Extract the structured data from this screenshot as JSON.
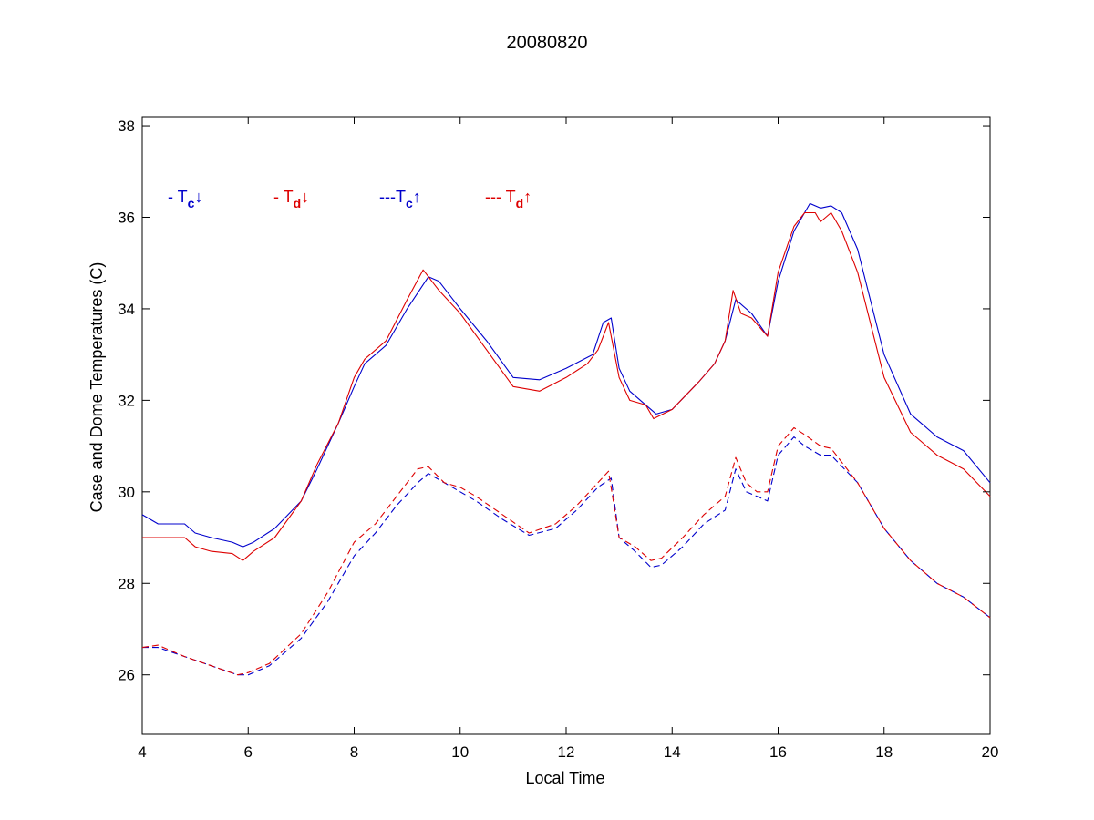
{
  "chart_data": {
    "type": "line",
    "title": "20080820",
    "xlabel": "Local Time",
    "ylabel": "Case and Dome Temperatures (C)",
    "xlim": [
      4,
      20
    ],
    "ylim": [
      24.7,
      38.2
    ],
    "xticks": [
      4,
      6,
      8,
      10,
      12,
      14,
      16,
      18,
      20
    ],
    "yticks": [
      26,
      28,
      30,
      32,
      34,
      36,
      38
    ],
    "grid": false,
    "legend_placement": "top-left",
    "legend": [
      {
        "prefix": "- T",
        "sub": "c",
        "arrow": "↓",
        "color": "#0000cc"
      },
      {
        "prefix": "- T",
        "sub": "d",
        "arrow": "↓",
        "color": "#dd0000"
      },
      {
        "prefix": "---T",
        "sub": "c",
        "arrow": "↑",
        "color": "#0000cc"
      },
      {
        "prefix": "--- T",
        "sub": "d",
        "arrow": "↑",
        "color": "#dd0000"
      }
    ],
    "series": [
      {
        "key": "tc_down",
        "color": "#0000cc",
        "dash": "solid",
        "x": [
          4.0,
          4.3,
          4.8,
          5.0,
          5.3,
          5.7,
          5.9,
          6.1,
          6.5,
          7.0,
          7.3,
          7.7,
          8.0,
          8.2,
          8.6,
          9.0,
          9.4,
          9.6,
          10.0,
          10.5,
          11.0,
          11.5,
          12.0,
          12.5,
          12.7,
          12.85,
          13.0,
          13.2,
          13.5,
          13.7,
          14.0,
          14.5,
          14.8,
          15.0,
          15.2,
          15.5,
          15.8,
          16.0,
          16.3,
          16.6,
          16.8,
          17.0,
          17.2,
          17.5,
          18.0,
          18.5,
          19.0,
          19.5,
          20.0
        ],
        "y": [
          29.5,
          29.3,
          29.3,
          29.1,
          29.0,
          28.9,
          28.8,
          28.9,
          29.2,
          29.8,
          30.5,
          31.5,
          32.3,
          32.8,
          33.2,
          34.0,
          34.7,
          34.6,
          34.0,
          33.3,
          32.5,
          32.45,
          32.7,
          33.0,
          33.7,
          33.8,
          32.7,
          32.2,
          31.9,
          31.7,
          31.8,
          32.4,
          32.8,
          33.3,
          34.2,
          33.9,
          33.4,
          34.6,
          35.7,
          36.3,
          36.2,
          36.25,
          36.1,
          35.3,
          33.0,
          31.7,
          31.2,
          30.9,
          30.2
        ]
      },
      {
        "key": "td_down",
        "color": "#dd0000",
        "dash": "solid",
        "x": [
          4.0,
          4.3,
          4.8,
          5.0,
          5.3,
          5.7,
          5.9,
          6.1,
          6.5,
          7.0,
          7.3,
          7.7,
          8.0,
          8.2,
          8.6,
          9.0,
          9.3,
          9.6,
          10.0,
          10.5,
          11.0,
          11.5,
          12.0,
          12.4,
          12.6,
          12.8,
          13.0,
          13.2,
          13.5,
          13.65,
          14.0,
          14.5,
          14.8,
          15.0,
          15.15,
          15.3,
          15.5,
          15.8,
          16.0,
          16.3,
          16.5,
          16.7,
          16.8,
          17.0,
          17.2,
          17.5,
          18.0,
          18.5,
          19.0,
          19.5,
          20.0
        ],
        "y": [
          29.0,
          29.0,
          29.0,
          28.8,
          28.7,
          28.65,
          28.5,
          28.7,
          29.0,
          29.8,
          30.6,
          31.5,
          32.5,
          32.9,
          33.3,
          34.2,
          34.85,
          34.4,
          33.9,
          33.1,
          32.3,
          32.2,
          32.5,
          32.8,
          33.1,
          33.7,
          32.5,
          32.0,
          31.9,
          31.6,
          31.8,
          32.4,
          32.8,
          33.3,
          34.4,
          33.9,
          33.8,
          33.4,
          34.8,
          35.8,
          36.1,
          36.1,
          35.9,
          36.1,
          35.7,
          34.8,
          32.5,
          31.3,
          30.8,
          30.5,
          29.9
        ]
      },
      {
        "key": "tc_up",
        "color": "#0000cc",
        "dash": "dashed",
        "x": [
          4.0,
          4.3,
          4.8,
          5.3,
          5.8,
          6.0,
          6.4,
          7.0,
          7.5,
          8.0,
          8.4,
          8.8,
          9.2,
          9.4,
          9.7,
          10.0,
          10.3,
          10.8,
          11.3,
          11.8,
          12.2,
          12.6,
          12.85,
          13.0,
          13.3,
          13.6,
          13.8,
          14.2,
          14.6,
          15.0,
          15.2,
          15.4,
          15.6,
          15.8,
          16.0,
          16.3,
          16.5,
          16.8,
          17.0,
          17.5,
          18.0,
          18.5,
          19.0,
          19.5,
          20.0
        ],
        "y": [
          26.6,
          26.6,
          26.4,
          26.2,
          26.0,
          26.0,
          26.2,
          26.8,
          27.6,
          28.6,
          29.1,
          29.7,
          30.2,
          30.4,
          30.2,
          30.0,
          29.8,
          29.4,
          29.05,
          29.2,
          29.6,
          30.1,
          30.3,
          29.0,
          28.7,
          28.35,
          28.4,
          28.8,
          29.3,
          29.6,
          30.5,
          30.0,
          29.9,
          29.8,
          30.8,
          31.2,
          31.0,
          30.8,
          30.8,
          30.2,
          29.2,
          28.5,
          28.0,
          27.7,
          27.25
        ]
      },
      {
        "key": "td_up",
        "color": "#dd0000",
        "dash": "dashed",
        "x": [
          4.0,
          4.3,
          4.8,
          5.3,
          5.8,
          6.0,
          6.4,
          7.0,
          7.5,
          8.0,
          8.4,
          8.8,
          9.2,
          9.4,
          9.7,
          10.0,
          10.3,
          10.8,
          11.3,
          11.8,
          12.2,
          12.6,
          12.8,
          13.0,
          13.3,
          13.6,
          13.8,
          14.2,
          14.6,
          15.0,
          15.2,
          15.4,
          15.6,
          15.8,
          16.0,
          16.3,
          16.5,
          16.8,
          17.0,
          17.5,
          18.0,
          18.5,
          19.0,
          19.5,
          20.0
        ],
        "y": [
          26.6,
          26.65,
          26.4,
          26.2,
          26.0,
          26.05,
          26.25,
          26.9,
          27.8,
          28.9,
          29.3,
          29.9,
          30.5,
          30.55,
          30.2,
          30.1,
          29.9,
          29.5,
          29.1,
          29.3,
          29.7,
          30.2,
          30.45,
          29.0,
          28.8,
          28.5,
          28.55,
          29.0,
          29.5,
          29.9,
          30.75,
          30.2,
          30.0,
          30.0,
          31.0,
          31.4,
          31.25,
          31.0,
          30.95,
          30.2,
          29.2,
          28.5,
          28.0,
          27.7,
          27.25
        ]
      }
    ]
  }
}
